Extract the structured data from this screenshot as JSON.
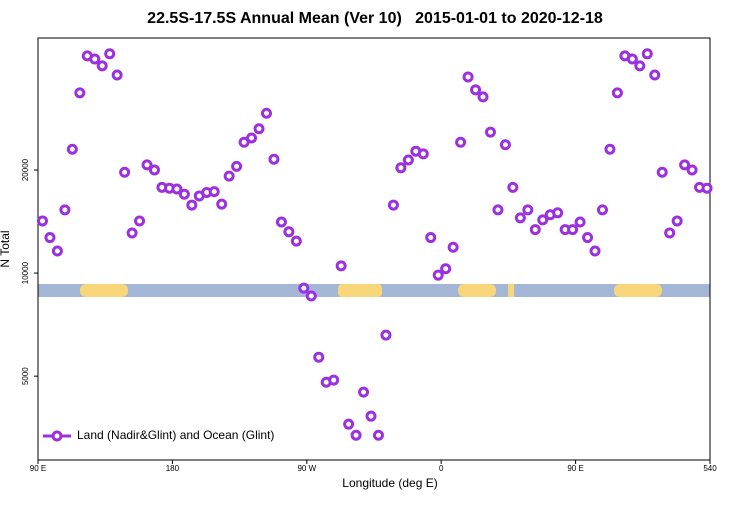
{
  "chart_data": {
    "type": "scatter",
    "title": "22.5S-17.5S Annual Mean (Ver 10)   2015-01-01 to 2020-12-18",
    "x_label": "Longitude (deg E)",
    "y_label": "N Total",
    "xlim": [
      90,
      540
    ],
    "xticks": [
      {
        "value": 90,
        "label": "90 E"
      },
      180,
      {
        "value": 270,
        "label": "90 W"
      },
      {
        "value": 360,
        "label": "0"
      },
      {
        "value": 450,
        "label": "90 E"
      },
      540
    ],
    "ylim": [
      2845,
      48600
    ],
    "yticks": [
      5000,
      10000,
      20000
    ],
    "y_scale": "log",
    "grid": false,
    "legend": "lower left",
    "series": [
      {
        "name": "Land (Nadir&Glint) and Ocean (Glint)",
        "color": "#9b30e0",
        "x": [
          93,
          98,
          103,
          108,
          113,
          118,
          123,
          128,
          133,
          138,
          143,
          148,
          153,
          158,
          163,
          168,
          173,
          178,
          183,
          188,
          193,
          198,
          203,
          208,
          213,
          218,
          223,
          228,
          233,
          238,
          243,
          248,
          253,
          258,
          263,
          268,
          273,
          278,
          283,
          288,
          293,
          298,
          303,
          308,
          313,
          318,
          323,
          328,
          333,
          338,
          343,
          348,
          353,
          358,
          363,
          368,
          373,
          378,
          383,
          388,
          393,
          398,
          403,
          408,
          413,
          418,
          423,
          428,
          433,
          438,
          443,
          448,
          453,
          458,
          463,
          468,
          473,
          478,
          483,
          488,
          493,
          498,
          503,
          508,
          513,
          518,
          523,
          528,
          533,
          538
        ],
        "values": [
          14200,
          12700,
          11600,
          15300,
          23000,
          33600,
          43100,
          42200,
          40300,
          43700,
          37900,
          19700,
          13100,
          14200,
          20700,
          20000,
          17800,
          17700,
          17600,
          17000,
          15800,
          16800,
          17200,
          17300,
          15900,
          19200,
          20500,
          24100,
          24800,
          26400,
          29300,
          21500,
          14100,
          13200,
          12400,
          9040,
          8570,
          5680,
          4800,
          4870,
          10500,
          3620,
          3360,
          4490,
          3820,
          3360,
          6590,
          15800,
          20300,
          21400,
          22700,
          22300,
          12700,
          9860,
          10300,
          11900,
          24100,
          37400,
          34300,
          32700,
          25800,
          15300,
          23700,
          17800,
          14500,
          15300,
          13400,
          14300,
          14800,
          15000,
          13400,
          13400,
          14100,
          12700,
          11600,
          15300,
          23000,
          33600,
          43100,
          42200,
          40300,
          43700,
          37900,
          19700,
          13100,
          14200,
          20700,
          20000,
          17800,
          17700
        ]
      }
    ]
  }
}
